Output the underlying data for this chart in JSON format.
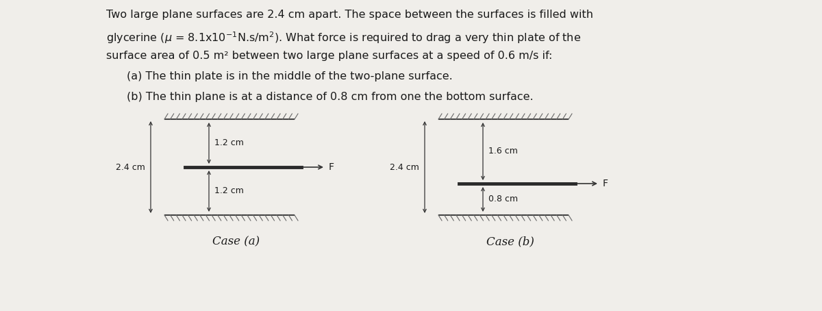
{
  "background_color": "#f0eeea",
  "text_color": "#1a1a1a",
  "line1": "Two large plane surfaces are 2.4 cm apart. The space between the surfaces is filled with",
  "line2_plain": "glycerine (",
  "line2_mu": "μ",
  "line2_rest": " = 8.1x10",
  "line2_exp": "-1",
  "line2_end": "N.s/m",
  "line2_exp2": "2",
  "line2_final": "). What force is required to drag a very thin plate of the",
  "line3": "surface area of 0.5 m² between two large plane surfaces at a speed of 0.6 m/s if:",
  "point_a": "(a) The thin plate is in the middle of the two-plane surface.",
  "point_b": "(b) The thin plane is at a distance of 0.8 cm from one the bottom surface.",
  "case_a_label": "Case (a)",
  "case_b_label": "Case (b)",
  "ca_top_label": "1.2 cm",
  "ca_bot_label": "1.2 cm",
  "ca_left_label": "2.4 cm",
  "ca_force_label": "F",
  "cb_top_label": "1.6 cm",
  "cb_bot_label": "0.8 cm",
  "cb_left_label": "2.4 cm",
  "cb_force_label": "F"
}
